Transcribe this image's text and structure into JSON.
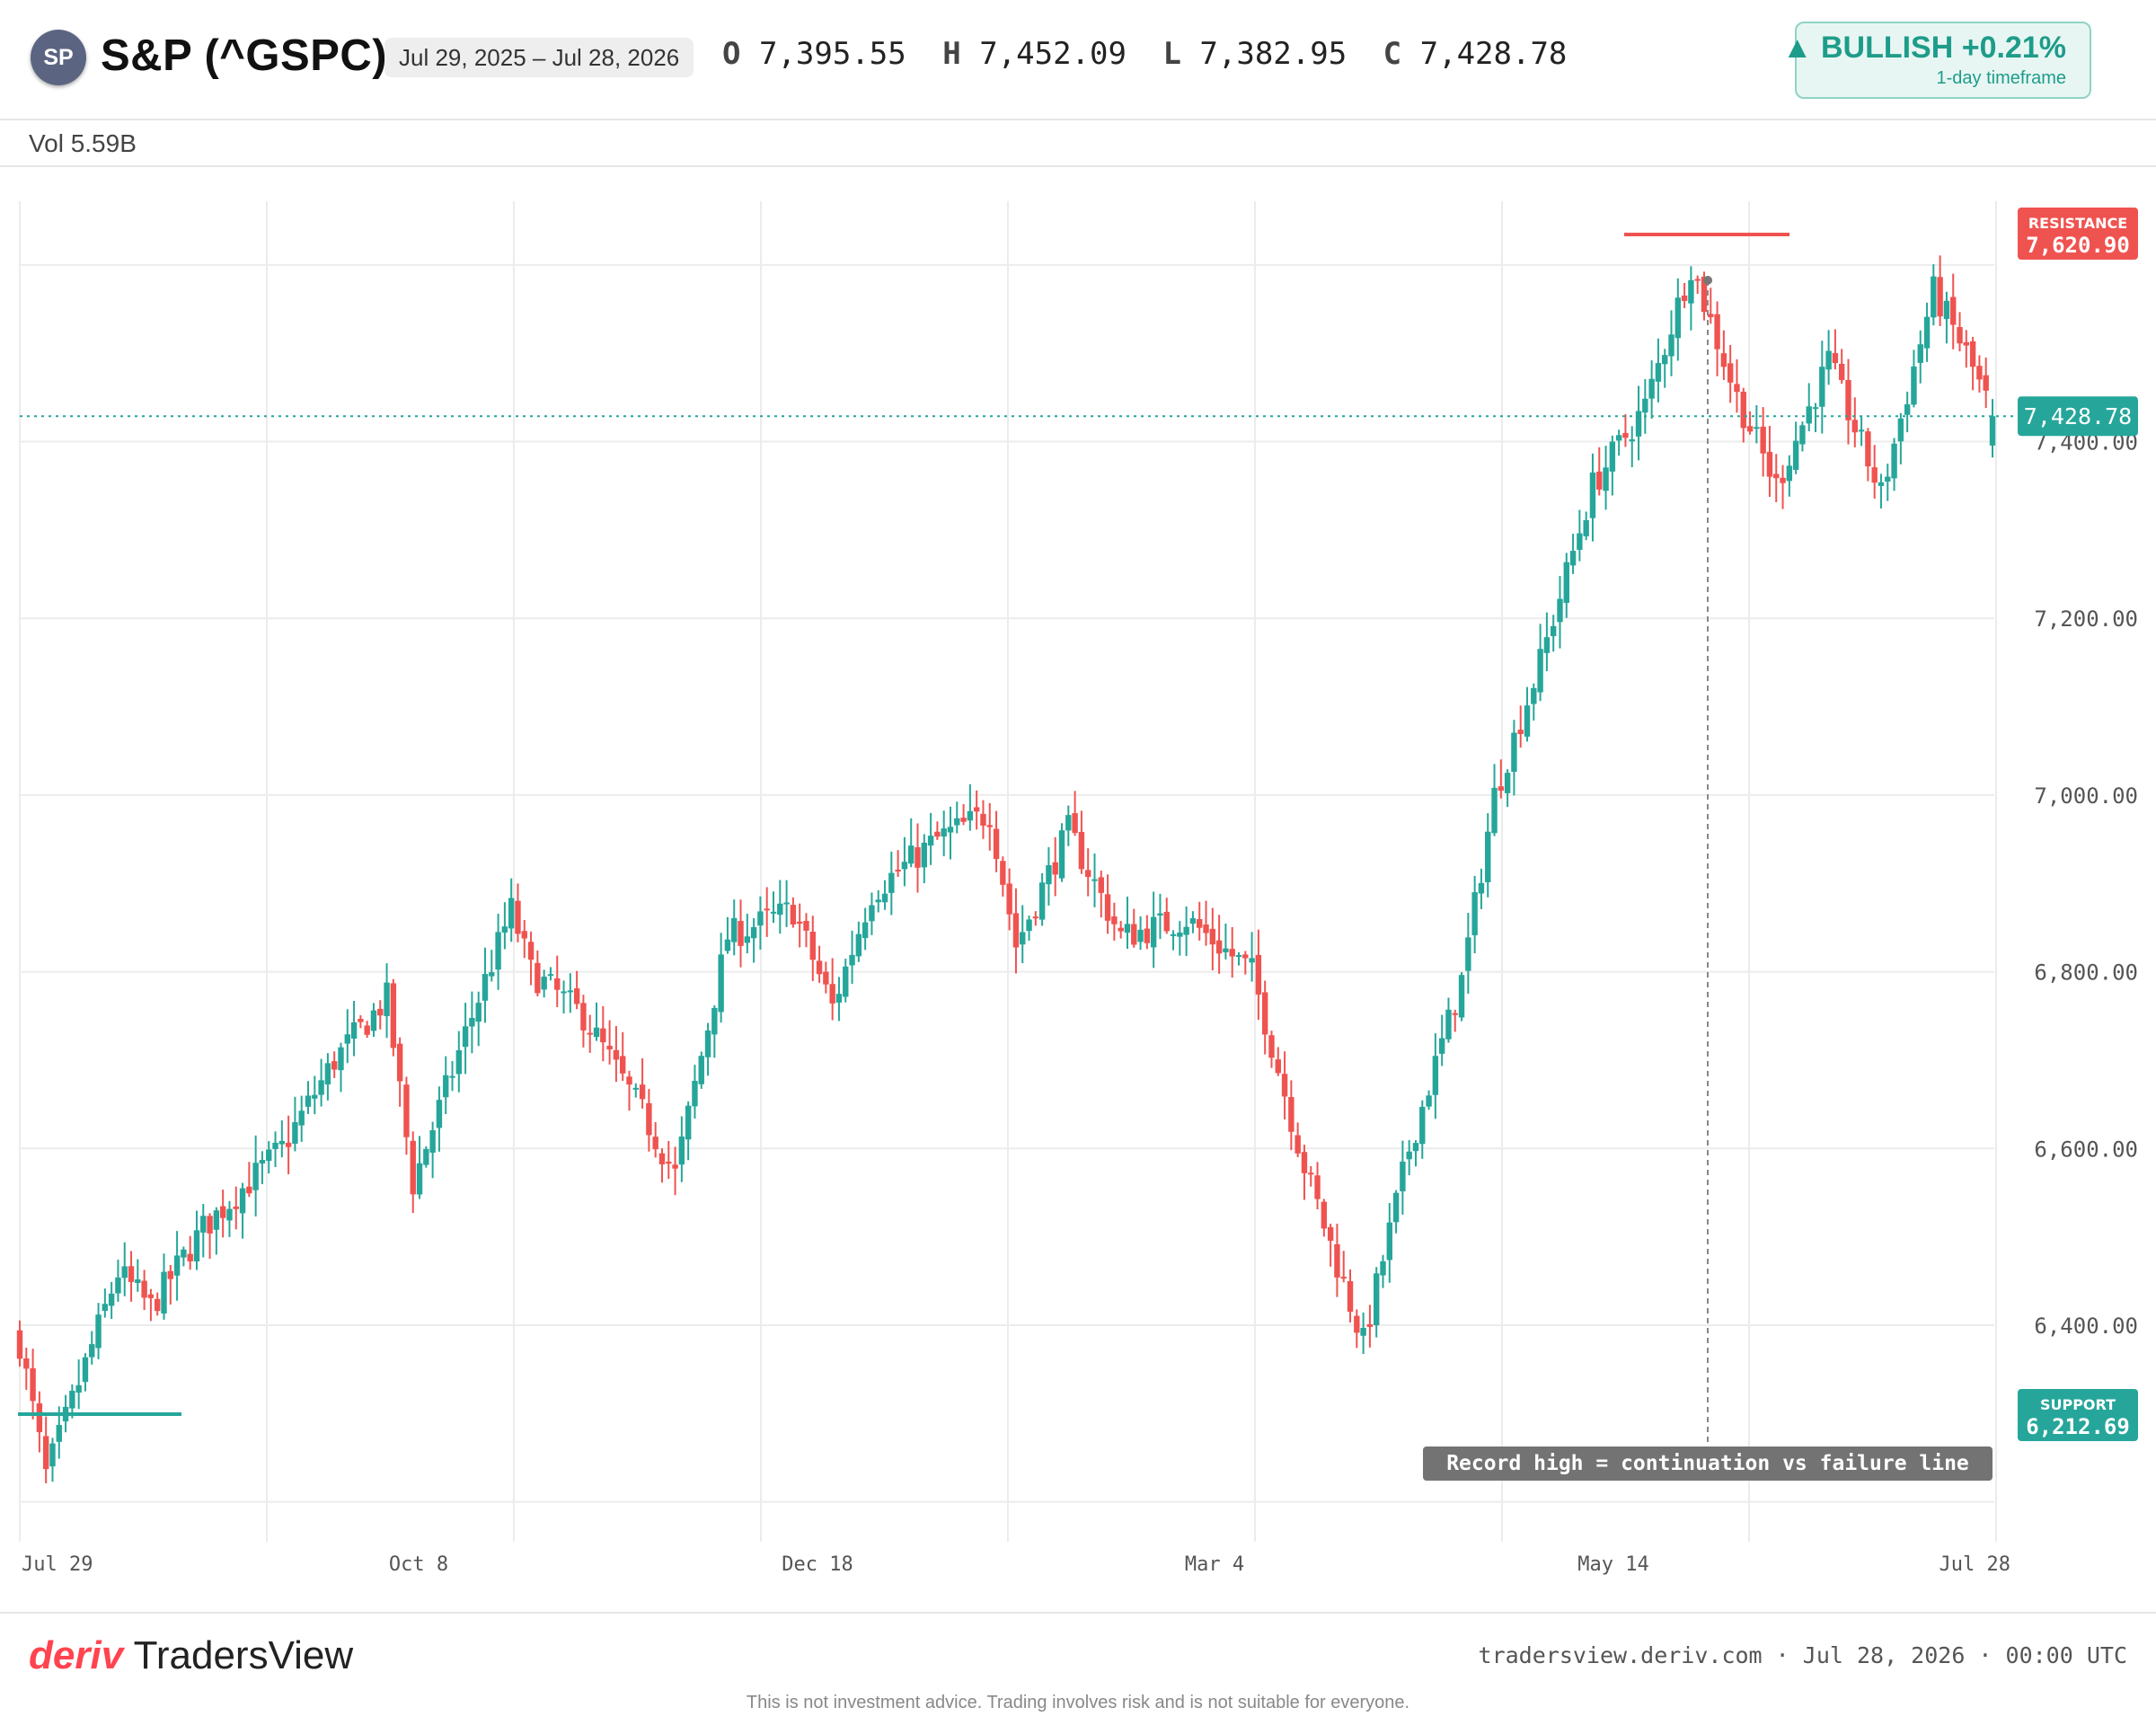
{
  "header": {
    "avatar": "SP",
    "ticker": "S&P (^GSPC)",
    "date_range": "Jul 29, 2025 – Jul 28, 2026",
    "ohlc": {
      "o_label": "O",
      "o": "7,395.55",
      "h_label": "H",
      "h": "7,452.09",
      "l_label": "L",
      "l": "7,382.95",
      "c_label": "C",
      "c": "7,428.78"
    },
    "badge": {
      "text": "▲ BULLISH +0.21%",
      "sub": "1-day timeframe"
    }
  },
  "volume": "Vol 5.59B",
  "footer": {
    "brand_mark": "deriv",
    "brand_name": "TradersView",
    "info": "tradersview.deriv.com · Jul 28, 2026 · 00:00 UTC",
    "disclaimer": "This is not investment advice. Trading involves risk and is not suitable for everyone."
  },
  "colors": {
    "up": "#26a69a",
    "down": "#ef5350",
    "grid": "#ececec",
    "axis_text": "#555555",
    "annotation_bg": "#737373"
  },
  "chart_data": {
    "type": "candlestick",
    "x_labels": [
      "Jul 29",
      "Oct 8",
      "Dec 18",
      "Mar 4",
      "May 14",
      "Jul 28"
    ],
    "y_ticks": [
      "6,400.00",
      "6,600.00",
      "6,800.00",
      "7,000.00",
      "7,200.00",
      "7,400.00"
    ],
    "ylim": [
      6160,
      7670
    ],
    "grid": true,
    "keypoints": [
      {
        "i": 0,
        "p": 6380
      },
      {
        "i": 4,
        "p": 6230
      },
      {
        "i": 15,
        "p": 6460
      },
      {
        "i": 20,
        "p": 6420
      },
      {
        "i": 28,
        "p": 6510
      },
      {
        "i": 40,
        "p": 6600
      },
      {
        "i": 48,
        "p": 6700
      },
      {
        "i": 56,
        "p": 6770
      },
      {
        "i": 60,
        "p": 6560
      },
      {
        "i": 68,
        "p": 6730
      },
      {
        "i": 75,
        "p": 6870
      },
      {
        "i": 78,
        "p": 6800
      },
      {
        "i": 86,
        "p": 6750
      },
      {
        "i": 95,
        "p": 6640
      },
      {
        "i": 100,
        "p": 6570
      },
      {
        "i": 108,
        "p": 6840
      },
      {
        "i": 118,
        "p": 6870
      },
      {
        "i": 124,
        "p": 6760
      },
      {
        "i": 130,
        "p": 6890
      },
      {
        "i": 140,
        "p": 6950
      },
      {
        "i": 148,
        "p": 6980
      },
      {
        "i": 152,
        "p": 6830
      },
      {
        "i": 160,
        "p": 6960
      },
      {
        "i": 168,
        "p": 6840
      },
      {
        "i": 178,
        "p": 6860
      },
      {
        "i": 188,
        "p": 6800
      },
      {
        "i": 196,
        "p": 6580
      },
      {
        "i": 205,
        "p": 6380
      },
      {
        "i": 212,
        "p": 6600
      },
      {
        "i": 220,
        "p": 6790
      },
      {
        "i": 225,
        "p": 7000
      },
      {
        "i": 232,
        "p": 7150
      },
      {
        "i": 240,
        "p": 7350
      },
      {
        "i": 248,
        "p": 7440
      },
      {
        "i": 255,
        "p": 7600
      },
      {
        "i": 262,
        "p": 7450
      },
      {
        "i": 268,
        "p": 7350
      },
      {
        "i": 276,
        "p": 7490
      },
      {
        "i": 284,
        "p": 7340
      },
      {
        "i": 292,
        "p": 7570
      },
      {
        "i": 297,
        "p": 7500
      },
      {
        "i": 301,
        "p": 7428.78
      }
    ],
    "last_price": "7,428.78",
    "resistance": {
      "label": "RESISTANCE",
      "value": "7,620.90",
      "price": 7620.9
    },
    "support": {
      "label": "SUPPORT",
      "value": "6,212.69",
      "price": 6212.69
    },
    "annotation": "Record high = continuation vs failure line"
  }
}
